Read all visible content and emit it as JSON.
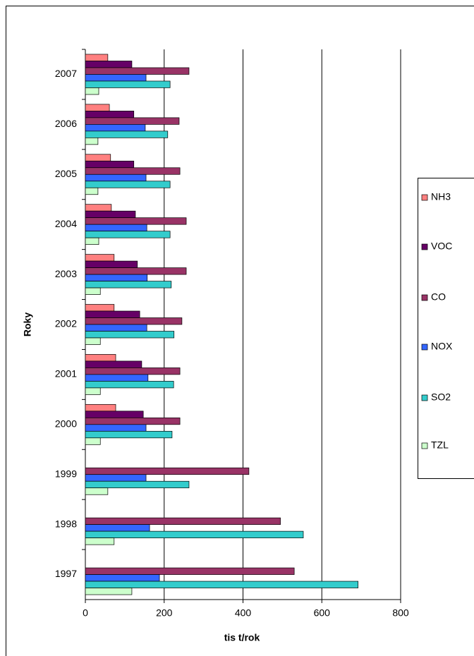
{
  "chart_data": {
    "type": "hbar",
    "xlabel": "tis t/rok",
    "ylabel": "Roky",
    "categories": [
      "1997",
      "1998",
      "1999",
      "2000",
      "2001",
      "2002",
      "2003",
      "2004",
      "2005",
      "2006",
      "2007"
    ],
    "series": [
      {
        "name": "NH3",
        "color": "#ff8080",
        "values": [
          null,
          null,
          null,
          77,
          77,
          73,
          73,
          66,
          64,
          61,
          57
        ]
      },
      {
        "name": "VOC",
        "color": "#660066",
        "values": [
          null,
          null,
          null,
          147,
          143,
          138,
          132,
          127,
          123,
          123,
          118
        ]
      },
      {
        "name": "CO",
        "color": "#993366",
        "values": [
          530,
          495,
          415,
          240,
          240,
          245,
          256,
          256,
          240,
          238,
          263
        ]
      },
      {
        "name": "NOX",
        "color": "#3366ff",
        "values": [
          188,
          163,
          154,
          154,
          159,
          156,
          157,
          156,
          154,
          152,
          154
        ]
      },
      {
        "name": "SO2",
        "color": "#33cccc",
        "values": [
          692,
          553,
          263,
          220,
          224,
          225,
          218,
          215,
          215,
          209,
          215
        ]
      },
      {
        "name": "TZL",
        "color": "#ccffcc",
        "values": [
          118,
          73,
          57,
          38,
          38,
          38,
          38,
          34,
          32,
          32,
          34
        ]
      }
    ],
    "xlim": [
      0,
      800
    ],
    "xticks": [
      0,
      200,
      400,
      600,
      800
    ],
    "grid": true
  }
}
